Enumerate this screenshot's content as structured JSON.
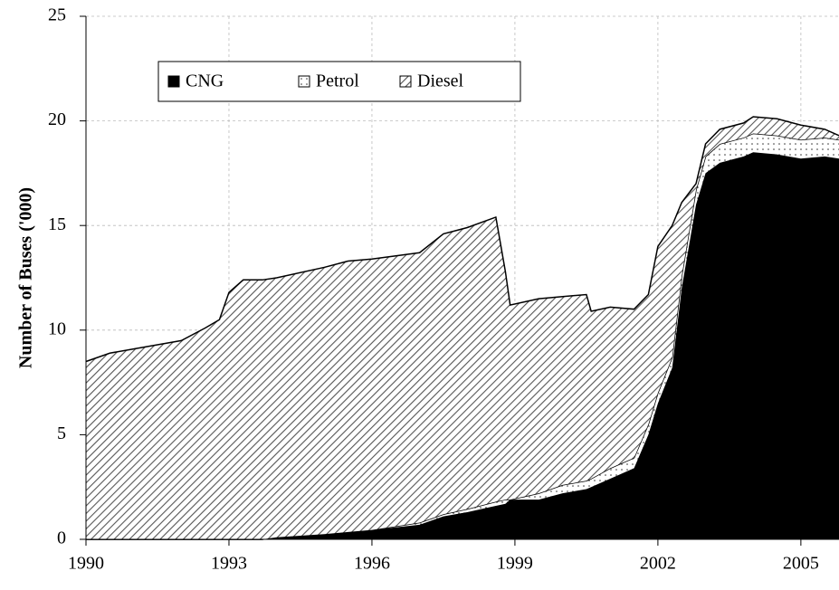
{
  "chart_data": {
    "type": "stacked_area",
    "y_label": "Number of Buses ('000)",
    "x": [
      1990,
      1990.5,
      1991,
      1991.5,
      1992,
      1992.5,
      1992.8,
      1993,
      1993.3,
      1993.7,
      1994,
      1995,
      1995.5,
      1996,
      1997,
      1997.5,
      1998,
      1998.6,
      1998.8,
      1998.9,
      1999.5,
      2000,
      2000.5,
      2000.6,
      2001,
      2001.5,
      2001.8,
      2002,
      2002.3,
      2002.5,
      2002.8,
      2003,
      2003.3,
      2003.8,
      2004,
      2004.5,
      2005,
      2005.5,
      2005.8
    ],
    "series": [
      {
        "name": "CNG",
        "color": "#000000",
        "pattern": "solid",
        "values": [
          0,
          0,
          0,
          0,
          0,
          0,
          0,
          0,
          0,
          0,
          0.1,
          0.25,
          0.35,
          0.45,
          0.7,
          1.1,
          1.3,
          1.6,
          1.7,
          1.9,
          1.9,
          2.2,
          2.4,
          2.5,
          2.9,
          3.4,
          5.0,
          6.5,
          8.2,
          12,
          16,
          17.5,
          18.0,
          18.3,
          18.5,
          18.4,
          18.2,
          18.3,
          18.2
        ]
      },
      {
        "name": "Petrol",
        "color": "#000000",
        "pattern": "dots",
        "values": [
          0,
          0,
          0,
          0,
          0,
          0,
          0,
          0,
          0,
          0,
          0,
          0,
          0,
          0,
          0.1,
          0.1,
          0.15,
          0.2,
          0.2,
          0,
          0.3,
          0.4,
          0.4,
          0.4,
          0.5,
          0.5,
          0.5,
          0.5,
          0.5,
          0.6,
          0.7,
          0.8,
          0.9,
          0.9,
          0.9,
          0.9,
          0.9,
          0.9,
          0.9
        ]
      },
      {
        "name": "Diesel",
        "color": "#000000",
        "pattern": "hatch",
        "values": [
          8.5,
          8.9,
          9.1,
          9.3,
          9.5,
          10.1,
          10.5,
          11.8,
          12.4,
          12.4,
          12.4,
          12.75,
          12.95,
          12.95,
          12.9,
          13.4,
          13.45,
          13.6,
          10.9,
          9.3,
          9.3,
          9.0,
          8.9,
          8.0,
          7.7,
          7.1,
          6.2,
          7.0,
          6.3,
          3.5,
          0.3,
          0.6,
          0.7,
          0.7,
          0.8,
          0.8,
          0.7,
          0.4,
          0.2
        ]
      }
    ],
    "xlim": [
      1990,
      2005.8
    ],
    "xticks": [
      1990,
      1993,
      1996,
      1999,
      2002,
      2005
    ],
    "ylim": [
      0,
      25
    ],
    "yticks": [
      0,
      5,
      10,
      15,
      20,
      25
    ],
    "grid": true,
    "legend": "top-left"
  }
}
